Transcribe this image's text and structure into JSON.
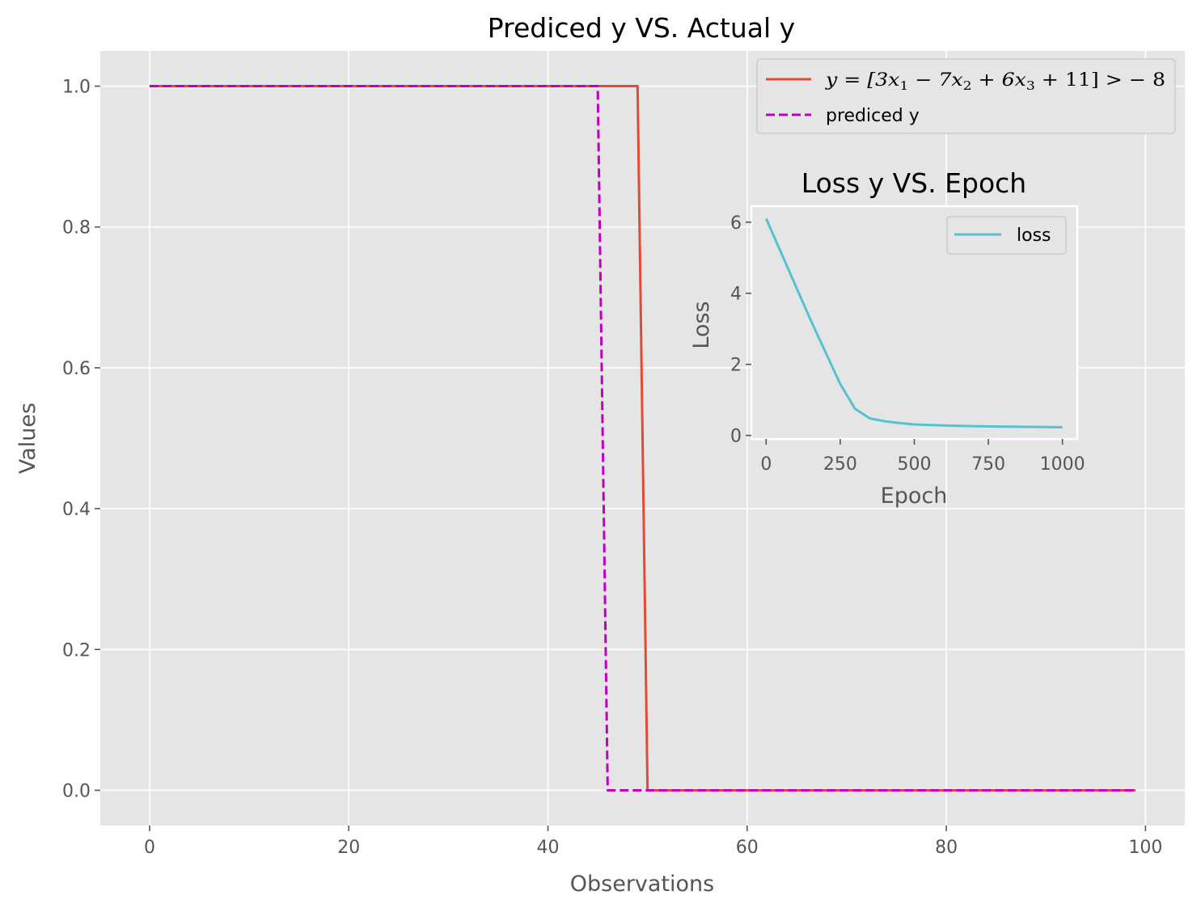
{
  "chart_data": [
    {
      "type": "line",
      "title": "Prediced y VS. Actual y",
      "xlabel": "Observations",
      "ylabel": "Values",
      "xlim": [
        -4.95,
        103.95
      ],
      "ylim": [
        -0.05,
        1.05
      ],
      "xticks": [
        0,
        20,
        40,
        60,
        80,
        100
      ],
      "yticks": [
        0.0,
        0.2,
        0.4,
        0.6,
        0.8,
        1.0
      ],
      "xtick_labels": [
        "0",
        "20",
        "40",
        "60",
        "80",
        "100"
      ],
      "ytick_labels": [
        "0.0",
        "0.2",
        "0.4",
        "0.6",
        "0.8",
        "1.0"
      ],
      "grid": true,
      "legend_position": "top-right",
      "series": [
        {
          "name": "y = [3x1 - 7x2 + 6x3 + 11] > -8",
          "color": "#E24A33",
          "style": "solid",
          "x": [
            0,
            49,
            50,
            99
          ],
          "y": [
            1,
            1,
            0,
            0
          ]
        },
        {
          "name": "prediced y",
          "color": "#BF00BF",
          "style": "dashed",
          "x": [
            0,
            45,
            46,
            99
          ],
          "y": [
            1,
            1,
            0,
            0
          ]
        }
      ]
    },
    {
      "type": "line",
      "title": "Loss y VS. Epoch",
      "xlabel": "Epoch",
      "ylabel": "Loss",
      "xlim": [
        -50,
        1050
      ],
      "ylim": [
        -0.1,
        6.45
      ],
      "xticks": [
        0,
        250,
        500,
        750,
        1000
      ],
      "yticks": [
        0,
        2,
        4,
        6
      ],
      "xtick_labels": [
        "0",
        "250",
        "500",
        "750",
        "1000"
      ],
      "ytick_labels": [
        "0",
        "2",
        "4",
        "6"
      ],
      "grid": false,
      "legend_position": "top-right",
      "series": [
        {
          "name": "loss",
          "color": "#56C1D1",
          "style": "solid",
          "x": [
            0,
            50,
            100,
            150,
            200,
            250,
            300,
            350,
            400,
            450,
            500,
            600,
            700,
            800,
            900,
            1000
          ],
          "y": [
            6.1,
            5.15,
            4.2,
            3.25,
            2.35,
            1.45,
            0.75,
            0.48,
            0.4,
            0.35,
            0.31,
            0.28,
            0.26,
            0.25,
            0.24,
            0.23
          ]
        }
      ]
    }
  ]
}
